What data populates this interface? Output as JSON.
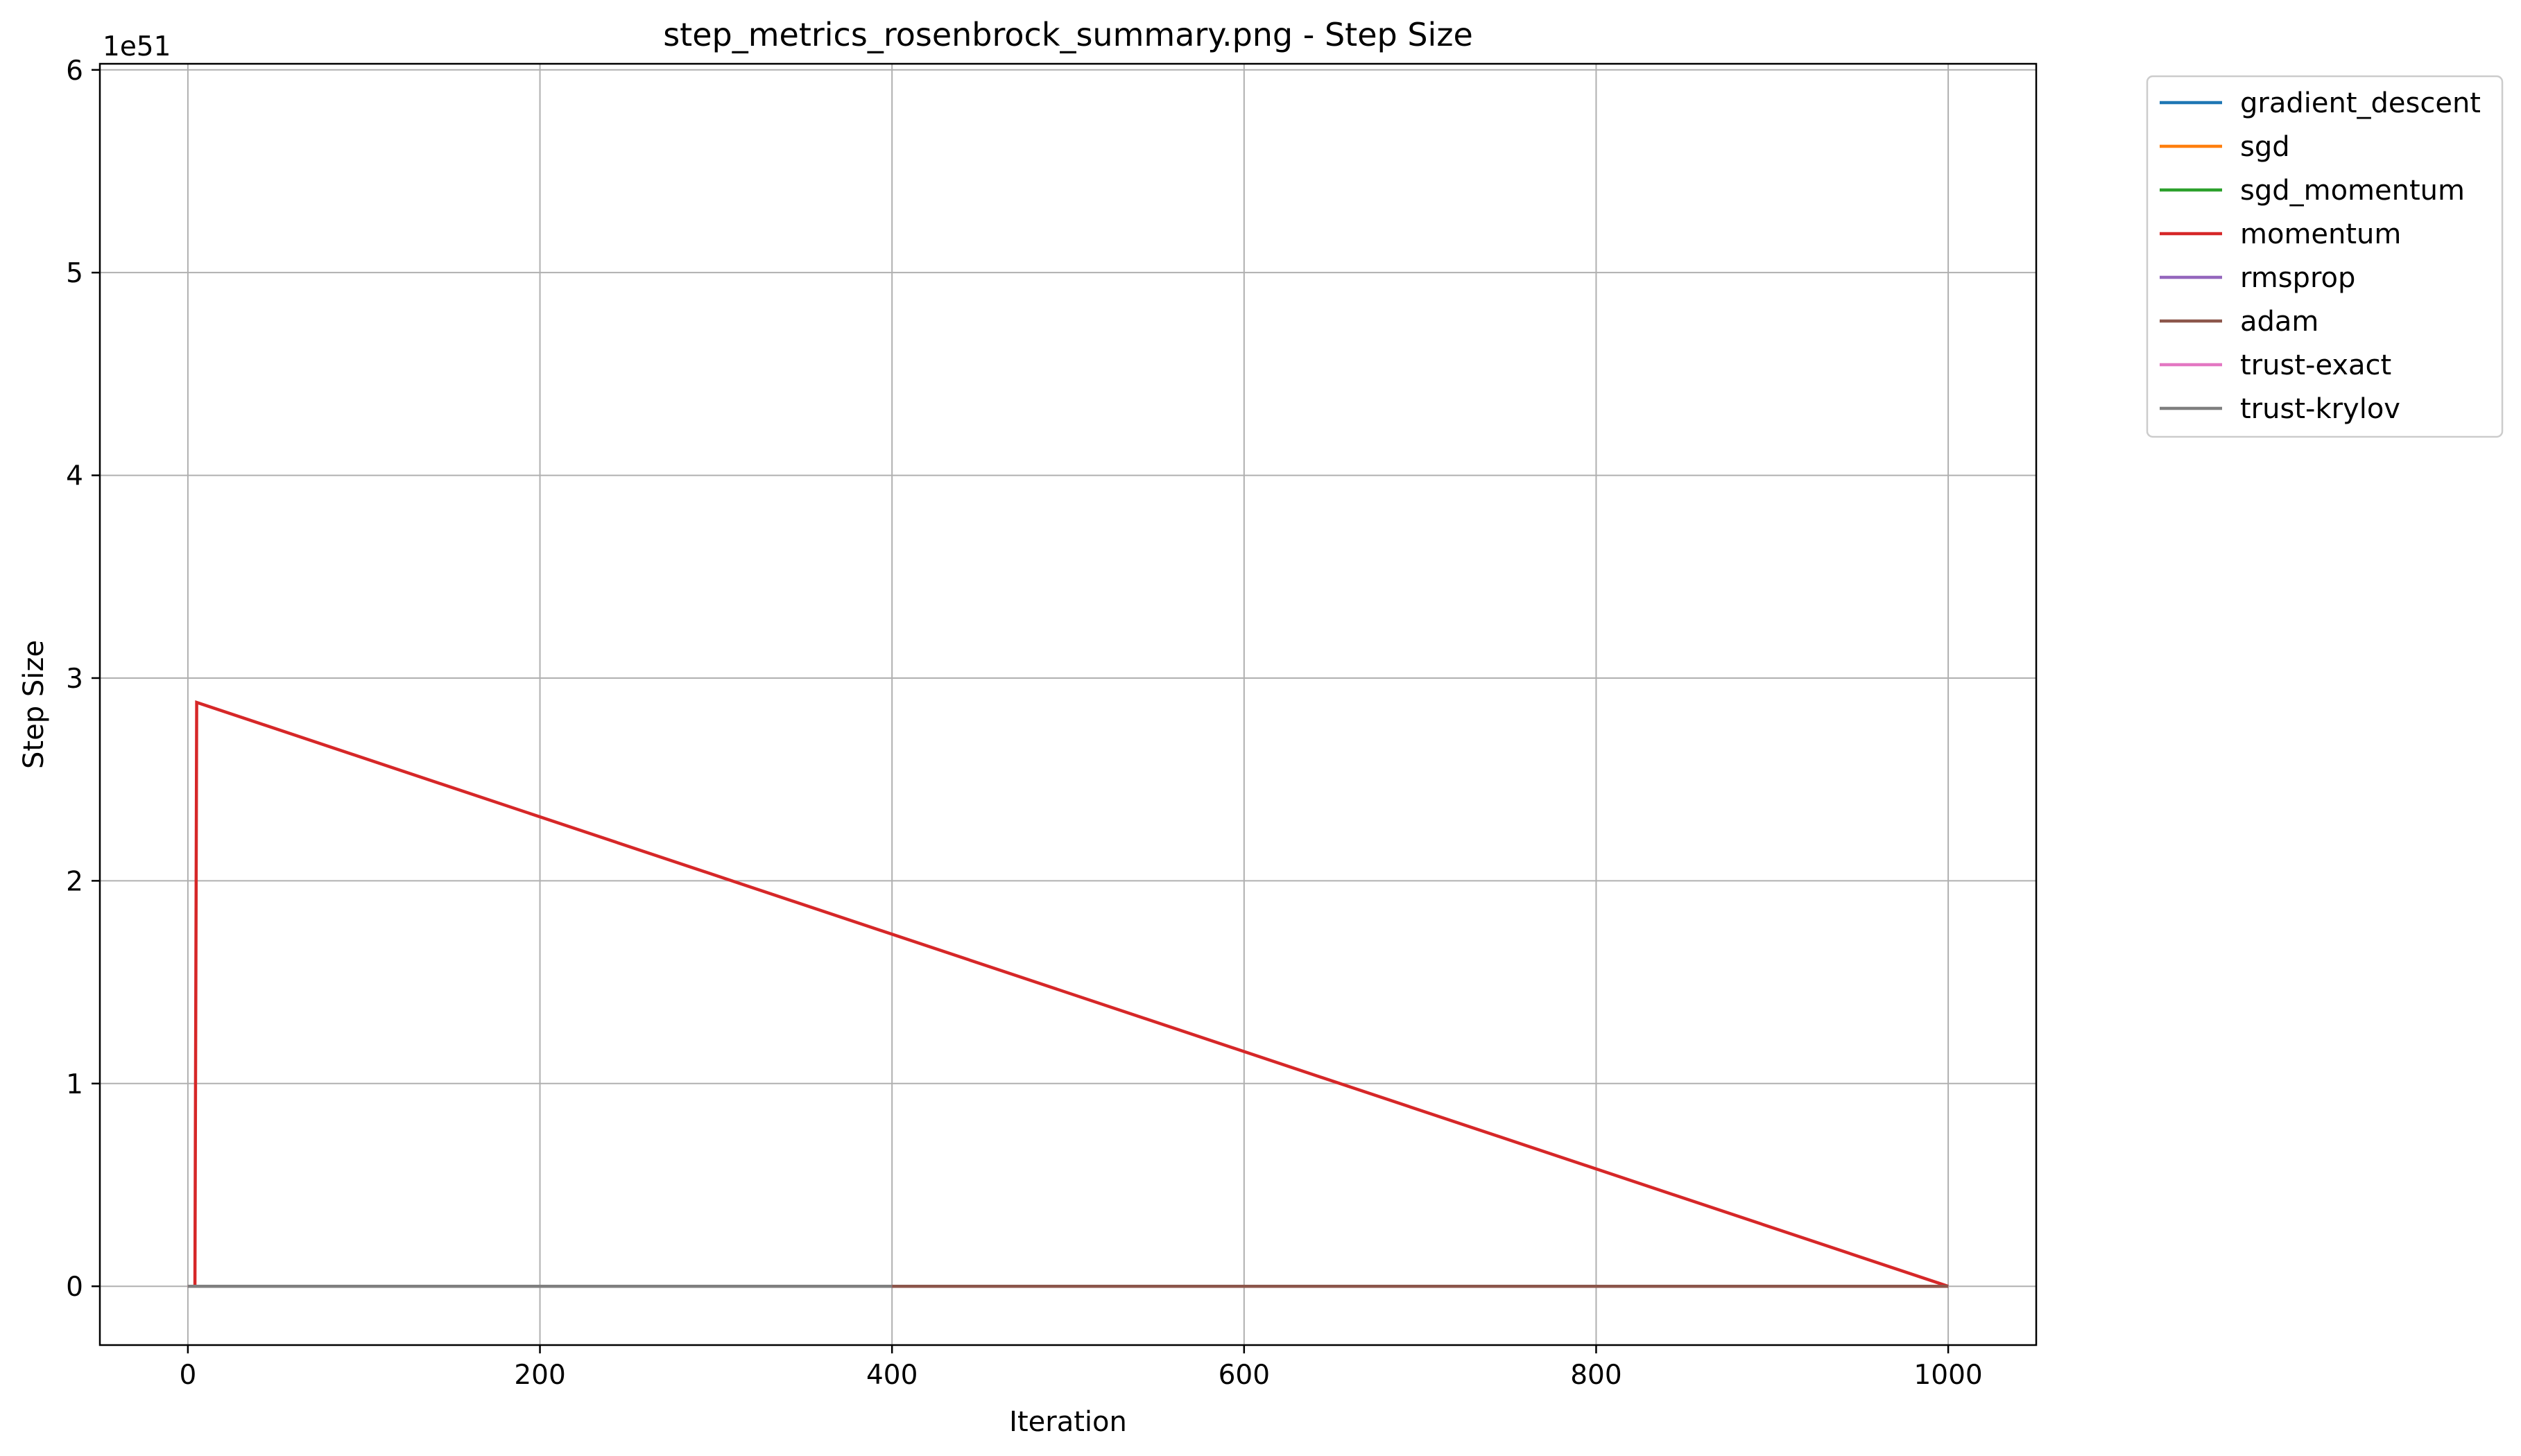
{
  "chart_data": {
    "type": "line",
    "title": "step_metrics_rosenbrock_summary.png - Step Size",
    "xlabel": "Iteration",
    "ylabel": "Step Size",
    "y_offset_label": "1e51",
    "y_scale_factor": 1e+51,
    "xlim": [
      -50,
      1050
    ],
    "ylim": [
      -0.29,
      6.03
    ],
    "xticks": [
      0,
      200,
      400,
      600,
      800,
      1000
    ],
    "yticks": [
      0,
      1,
      2,
      3,
      4,
      5,
      6
    ],
    "grid": true,
    "legend_position": "outside-top-right",
    "series": [
      {
        "name": "gradient_descent",
        "color": "#1f77b4",
        "x": [
          0,
          1000
        ],
        "y": [
          0,
          0
        ]
      },
      {
        "name": "sgd",
        "color": "#ff7f0e",
        "x": [
          0,
          1000
        ],
        "y": [
          0,
          0
        ]
      },
      {
        "name": "sgd_momentum",
        "color": "#2ca02c",
        "x": [
          0,
          1000
        ],
        "y": [
          0,
          0
        ]
      },
      {
        "name": "momentum",
        "color": "#d62728",
        "x": [
          0,
          1,
          2,
          3,
          4,
          5,
          1000
        ],
        "y": [
          0,
          0,
          0,
          0,
          0,
          2.88,
          0
        ]
      },
      {
        "name": "rmsprop",
        "color": "#9467bd",
        "x": [
          0,
          1000
        ],
        "y": [
          0,
          0
        ]
      },
      {
        "name": "adam",
        "color": "#8c564b",
        "x": [
          0,
          1000
        ],
        "y": [
          0,
          0
        ]
      },
      {
        "name": "trust-exact",
        "color": "#e377c2",
        "x": [
          0,
          400
        ],
        "y": [
          0,
          0
        ]
      },
      {
        "name": "trust-krylov",
        "color": "#7f7f7f",
        "x": [
          0,
          400
        ],
        "y": [
          0,
          0
        ]
      }
    ]
  }
}
